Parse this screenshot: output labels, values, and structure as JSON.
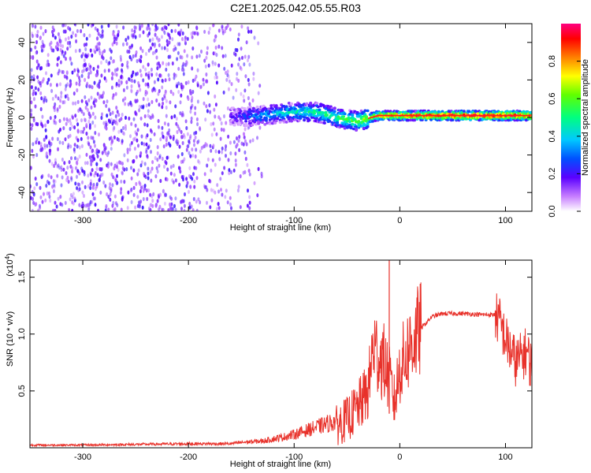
{
  "title": "C2E1.2025.042.05.55.R03",
  "chart_data": [
    {
      "type": "heatmap",
      "name": "spectrogram",
      "xlabel": "Height of straight line (km)",
      "ylabel": "Frequency (Hz)",
      "xlim": [
        -350,
        125
      ],
      "ylim": [
        -50,
        50
      ],
      "xticks": [
        -300,
        -200,
        -100,
        0,
        100
      ],
      "yticks": [
        -40,
        -20,
        0,
        20,
        40
      ],
      "colorbar": {
        "label": "Normalized spectral amplitude",
        "ticks": [
          0.0,
          0.2,
          0.4,
          0.6,
          0.8
        ],
        "range": [
          0,
          1
        ]
      },
      "ridge": [
        {
          "x": -160,
          "f": 0,
          "amp": 0.15
        },
        {
          "x": -130,
          "f": 1,
          "amp": 0.35
        },
        {
          "x": -100,
          "f": 3,
          "amp": 0.45
        },
        {
          "x": -80,
          "f": 3,
          "amp": 0.5
        },
        {
          "x": -60,
          "f": 0,
          "amp": 0.55
        },
        {
          "x": -40,
          "f": -2,
          "amp": 0.6
        },
        {
          "x": -20,
          "f": 1,
          "amp": 0.85
        },
        {
          "x": 0,
          "f": 1,
          "amp": 0.9
        },
        {
          "x": 30,
          "f": 1,
          "amp": 0.95
        },
        {
          "x": 60,
          "f": 1,
          "amp": 1.0
        },
        {
          "x": 100,
          "f": 1,
          "amp": 1.0
        },
        {
          "x": 125,
          "f": 1,
          "amp": 0.95
        }
      ]
    },
    {
      "type": "line",
      "name": "snr",
      "xlabel": "Height of straight line (km)",
      "ylabel": "SNR (10 * v/v)",
      "multiplier": "(x10",
      "multiplier_exp": "4",
      "multiplier_close": ")",
      "xlim": [
        -350,
        125
      ],
      "ylim": [
        0,
        1.65
      ],
      "xticks": [
        -300,
        -200,
        -100,
        0,
        100
      ],
      "yticks": [
        0.5,
        1.0,
        1.5
      ],
      "color": "#e8312a",
      "series": [
        {
          "name": "SNR",
          "x": [
            -350,
            -300,
            -250,
            -200,
            -160,
            -150,
            -130,
            -110,
            -100,
            -80,
            -60,
            -50,
            -40,
            -30,
            -25,
            -20,
            -15,
            -10,
            -5,
            0,
            10,
            20,
            30,
            40,
            60,
            80,
            90,
            95,
            100,
            105,
            110,
            115,
            120,
            125
          ],
          "y": [
            0.02,
            0.02,
            0.025,
            0.03,
            0.03,
            0.04,
            0.05,
            0.08,
            0.1,
            0.15,
            0.2,
            0.25,
            0.35,
            0.5,
            0.9,
            0.8,
            0.75,
            0.6,
            0.4,
            0.7,
            0.9,
            1.05,
            1.15,
            1.18,
            1.18,
            1.17,
            1.17,
            1.1,
            0.95,
            0.85,
            0.75,
            0.8,
            0.85,
            0.7
          ]
        }
      ],
      "spike": {
        "x": -10,
        "y": 1.65
      }
    }
  ]
}
